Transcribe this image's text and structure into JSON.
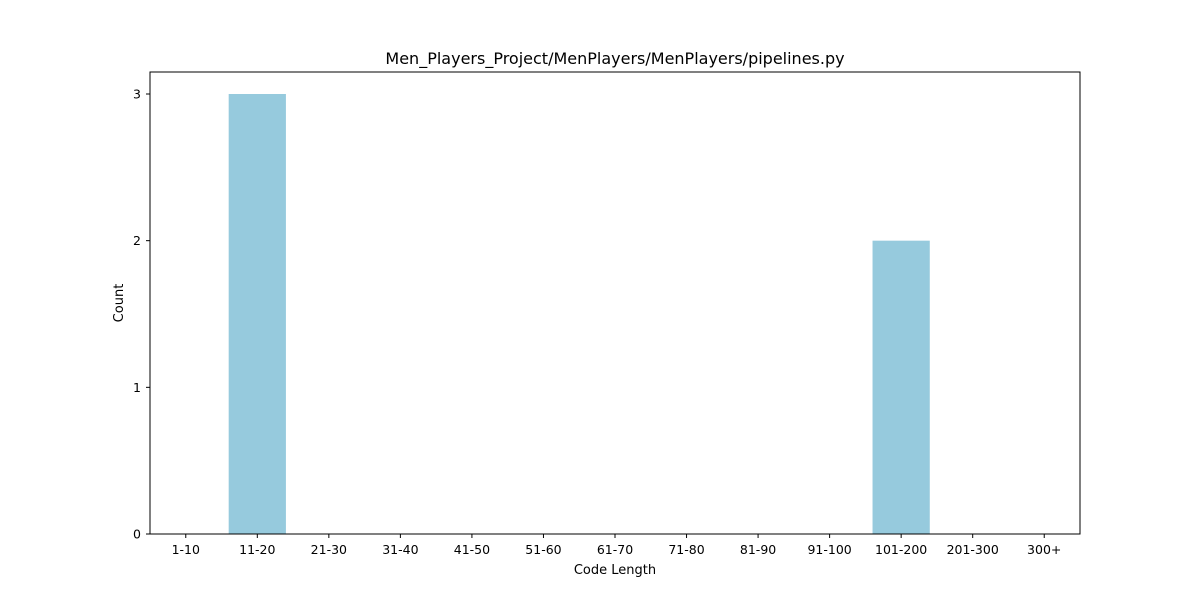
{
  "chart_data": {
    "type": "bar",
    "title": "Men_Players_Project/MenPlayers/MenPlayers/pipelines.py",
    "xlabel": "Code Length",
    "ylabel": "Count",
    "categories": [
      "1-10",
      "11-20",
      "21-30",
      "31-40",
      "41-50",
      "51-60",
      "61-70",
      "71-80",
      "81-90",
      "91-100",
      "101-200",
      "201-300",
      "300+"
    ],
    "values": [
      0,
      3,
      0,
      0,
      0,
      0,
      0,
      0,
      0,
      0,
      2,
      0,
      0
    ],
    "yticks": [
      0,
      1,
      2,
      3
    ],
    "ylim": [
      0,
      3.15
    ],
    "bar_color": "#96CADD",
    "grid": false,
    "legend": "none"
  }
}
